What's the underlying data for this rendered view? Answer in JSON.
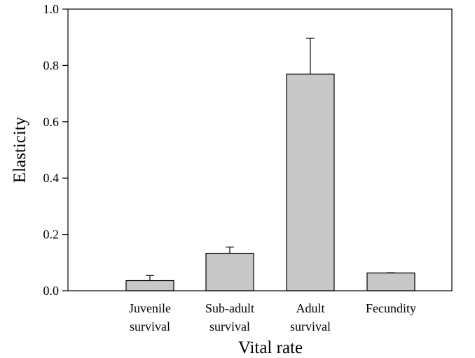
{
  "chart_data": {
    "type": "bar",
    "title": "",
    "xlabel": "Vital rate",
    "ylabel": "Elasticity",
    "categories": [
      [
        "Juvenile",
        "survival"
      ],
      [
        "Sub-adult",
        "survival"
      ],
      [
        "Adult",
        "survival"
      ],
      [
        "Fecundity"
      ]
    ],
    "values": [
      0.036,
      0.133,
      0.769,
      0.063
    ],
    "error_upper": [
      0.054,
      0.155,
      0.897,
      0.064
    ],
    "ylim": [
      0,
      1.0
    ],
    "yticks": [
      0.0,
      0.2,
      0.4,
      0.6,
      0.8,
      1.0
    ],
    "ytick_labels": [
      "0.0",
      "0.2",
      "0.4",
      "0.6",
      "0.8",
      "1.0"
    ],
    "grid": false,
    "bar_color": "#c8c8c8",
    "edge_color": "#000000"
  }
}
